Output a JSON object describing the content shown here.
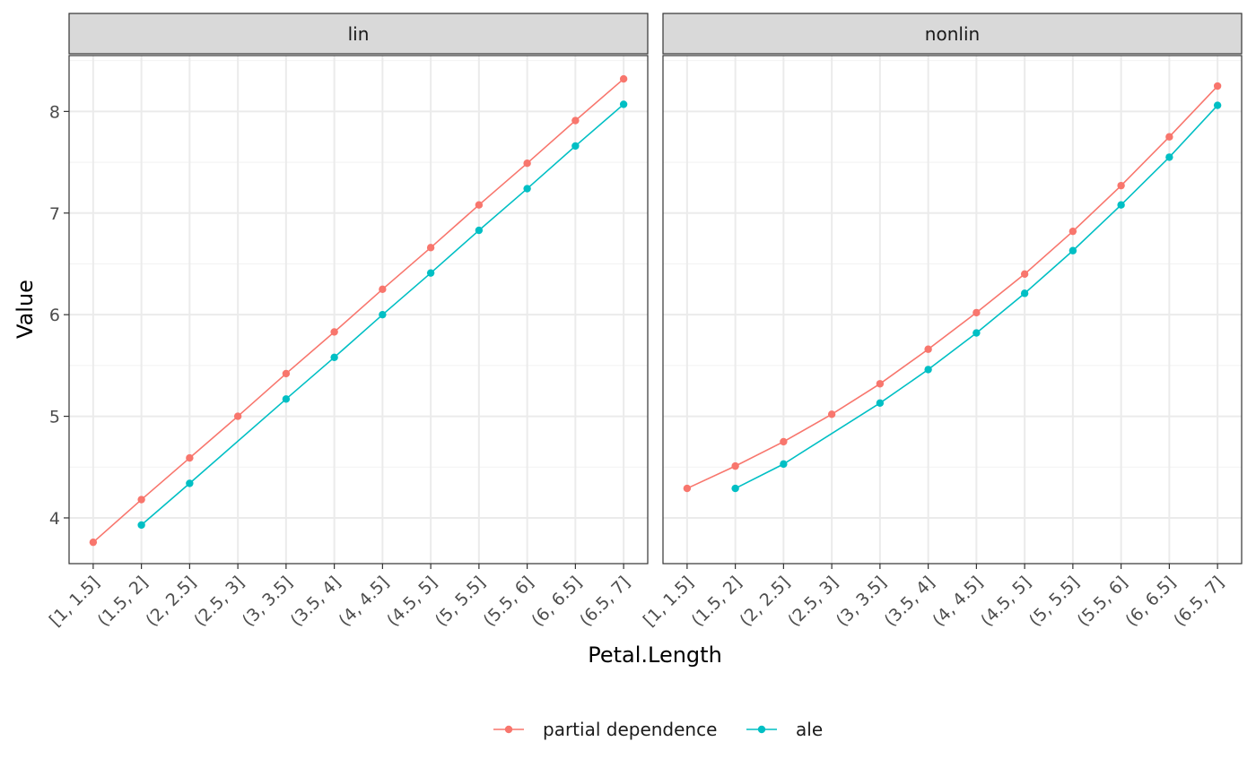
{
  "chart_data": {
    "type": "line",
    "xlabel": "Petal.Length",
    "ylabel": "Value",
    "ylim": [
      3.55,
      8.55
    ],
    "yticks": [
      4,
      5,
      6,
      7,
      8
    ],
    "grid": true,
    "legend_position": "bottom",
    "categories": [
      "[1, 1.5]",
      "(1.5, 2]",
      "(2, 2.5]",
      "(2.5, 3]",
      "(3, 3.5]",
      "(3.5, 4]",
      "(4, 4.5]",
      "(4.5, 5]",
      "(5, 5.5]",
      "(5.5, 6]",
      "(6, 6.5]",
      "(6.5, 7]"
    ],
    "series_styles": [
      {
        "name": "partial dependence",
        "color": "#F8766D"
      },
      {
        "name": "ale",
        "color": "#00BFC4"
      }
    ],
    "panels": [
      {
        "label": "lin",
        "series": [
          {
            "name": "partial dependence",
            "values": [
              3.76,
              4.18,
              4.59,
              5.0,
              5.42,
              5.83,
              6.25,
              6.66,
              7.08,
              7.49,
              7.91,
              8.32
            ],
            "points": [
              1,
              1,
              1,
              1,
              1,
              1,
              1,
              1,
              1,
              1,
              1,
              1
            ]
          },
          {
            "name": "ale",
            "values": [
              null,
              3.93,
              4.34,
              null,
              5.17,
              5.58,
              6.0,
              6.41,
              6.83,
              7.24,
              7.66,
              8.07
            ],
            "points": [
              0,
              1,
              1,
              0,
              1,
              1,
              1,
              1,
              1,
              1,
              1,
              1
            ]
          }
        ]
      },
      {
        "label": "nonlin",
        "series": [
          {
            "name": "partial dependence",
            "values": [
              4.29,
              4.51,
              4.75,
              5.02,
              5.32,
              5.66,
              6.02,
              6.4,
              6.82,
              7.27,
              7.75,
              8.25
            ],
            "points": [
              1,
              1,
              1,
              1,
              1,
              1,
              1,
              1,
              1,
              1,
              1,
              1
            ]
          },
          {
            "name": "ale",
            "values": [
              null,
              4.29,
              4.53,
              null,
              5.13,
              5.46,
              5.82,
              6.21,
              6.63,
              7.08,
              7.55,
              8.06
            ],
            "points": [
              0,
              1,
              1,
              0,
              1,
              1,
              1,
              1,
              1,
              1,
              1,
              1
            ]
          }
        ]
      }
    ]
  }
}
